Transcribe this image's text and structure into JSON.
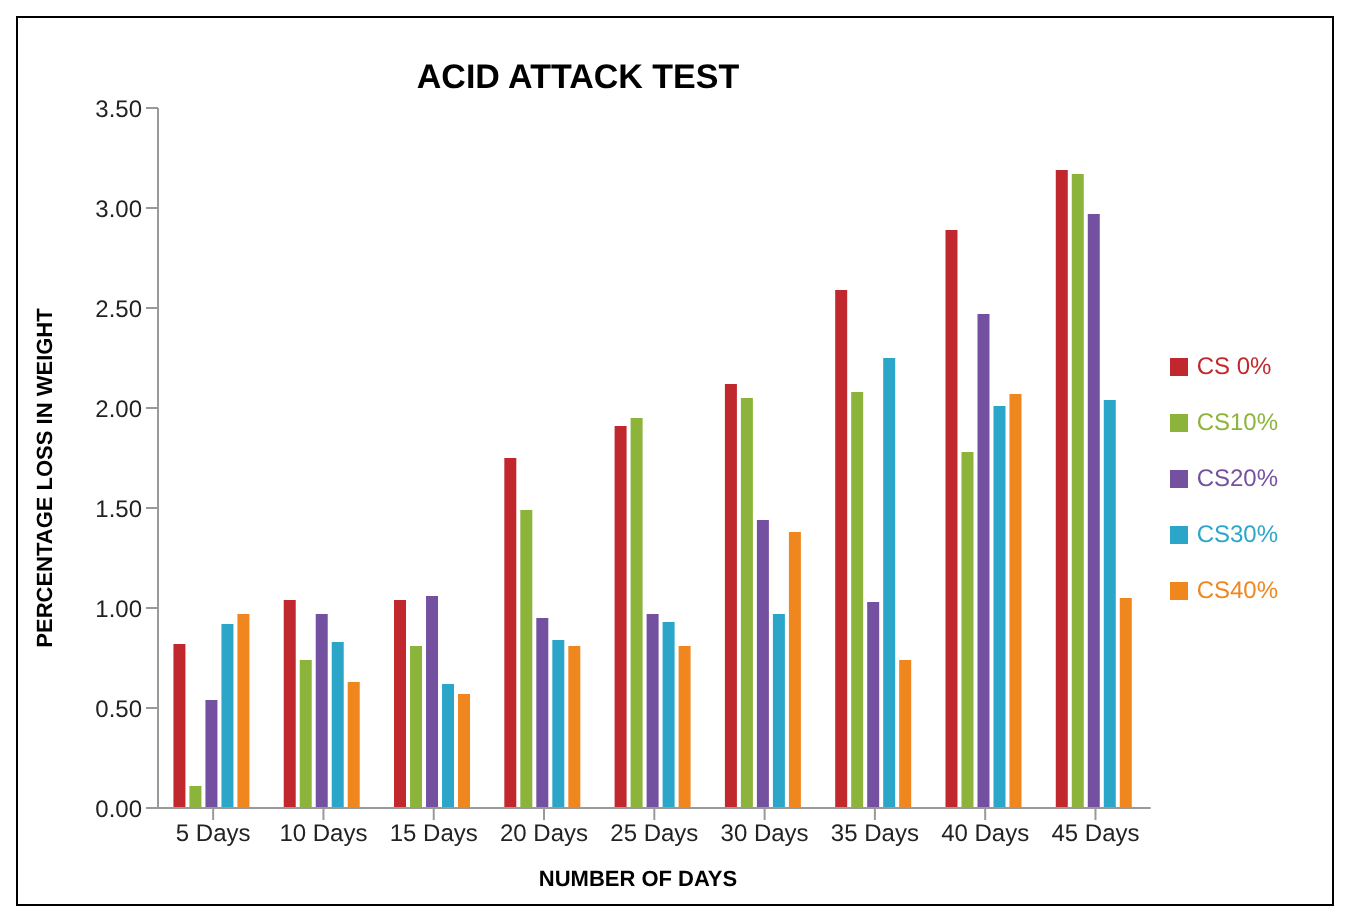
{
  "chart_data": {
    "type": "bar",
    "title": "ACID ATTACK TEST",
    "xlabel": "NUMBER OF DAYS",
    "ylabel": "PERCENTAGE LOSS IN WEIGHT",
    "categories": [
      "5 Days",
      "10 Days",
      "15 Days",
      "20 Days",
      "25 Days",
      "30 Days",
      "35 Days",
      "40 Days",
      "45 Days"
    ],
    "series": [
      {
        "name": "CS 0%",
        "color": "#c0282d",
        "values": [
          0.82,
          1.04,
          1.04,
          1.75,
          1.91,
          2.12,
          2.59,
          2.89,
          3.19
        ]
      },
      {
        "name": "CS10%",
        "color": "#8cb43a",
        "values": [
          0.11,
          0.74,
          0.81,
          1.49,
          1.95,
          2.05,
          2.08,
          1.78,
          3.17
        ]
      },
      {
        "name": "CS20%",
        "color": "#7451a0",
        "values": [
          0.54,
          0.97,
          1.06,
          0.95,
          0.97,
          1.44,
          1.03,
          2.47,
          2.97
        ]
      },
      {
        "name": "CS30%",
        "color": "#2ca6c8",
        "values": [
          0.92,
          0.83,
          0.62,
          0.84,
          0.93,
          0.97,
          2.25,
          2.01,
          2.04
        ]
      },
      {
        "name": "CS40%",
        "color": "#f0861e",
        "values": [
          0.97,
          0.63,
          0.57,
          0.81,
          0.81,
          1.38,
          0.74,
          2.07,
          1.05
        ]
      }
    ],
    "ylim": [
      0,
      3.5
    ],
    "yticks": [
      {
        "value": 0,
        "label": "0.00"
      },
      {
        "value": 0.5,
        "label": "0.50"
      },
      {
        "value": 1,
        "label": "1.00"
      },
      {
        "value": 1.5,
        "label": "1.50"
      },
      {
        "value": 2,
        "label": "2.00"
      },
      {
        "value": 2.5,
        "label": "2.50"
      },
      {
        "value": 3,
        "label": "3.00"
      },
      {
        "value": 3.5,
        "label": "3.50"
      }
    ],
    "grid": false,
    "legend": "right"
  }
}
